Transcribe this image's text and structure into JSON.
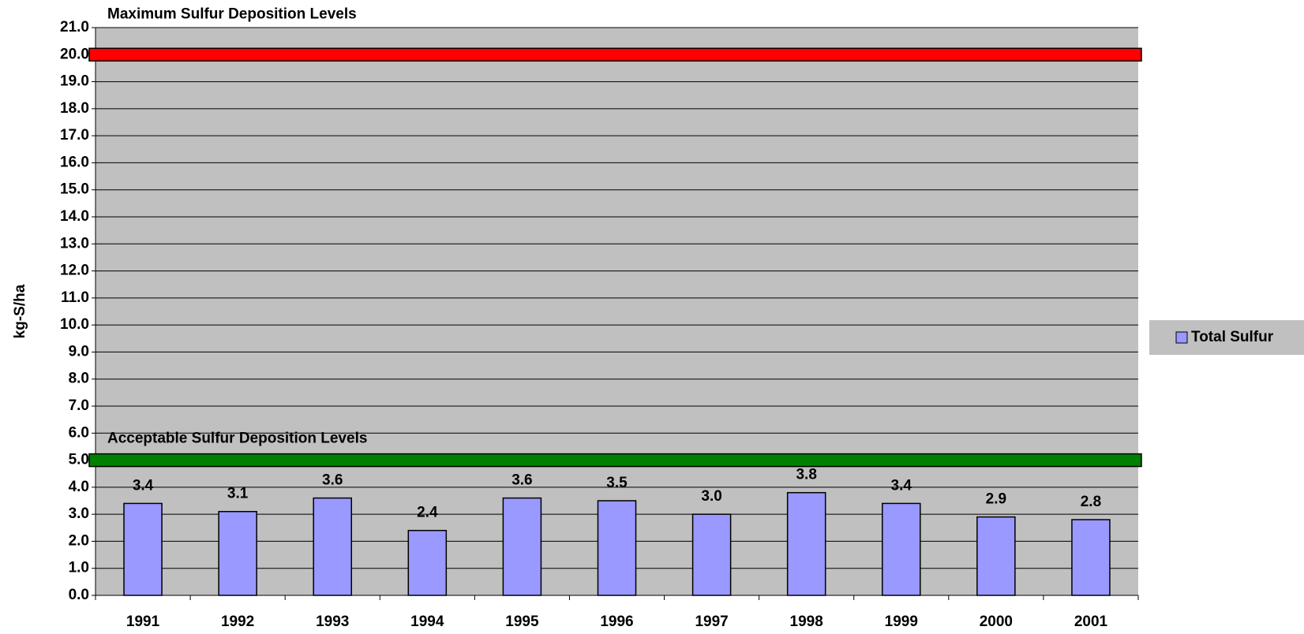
{
  "chart_data": {
    "type": "bar",
    "y_axis_label": "kg-S/ha",
    "categories": [
      "1991",
      "1992",
      "1993",
      "1994",
      "1995",
      "1996",
      "1997",
      "1998",
      "1999",
      "2000",
      "2001"
    ],
    "series": [
      {
        "name": "Total Sulfur",
        "color": "#9999ff",
        "values": [
          3.4,
          3.1,
          3.6,
          2.4,
          3.6,
          3.5,
          3.0,
          3.8,
          3.4,
          2.9,
          2.8
        ],
        "value_labels": [
          "3.4",
          "3.1",
          "3.6",
          "2.4",
          "3.6",
          "3.5",
          "3.0",
          "3.8",
          "3.4",
          "2.9",
          "2.8"
        ]
      }
    ],
    "reference_lines": [
      {
        "label": "Maximum Sulfur Deposition Levels",
        "value": 20,
        "color": "#ff0000"
      },
      {
        "label": "Acceptable Sulfur Deposition Levels",
        "value": 5,
        "color": "#008000"
      }
    ],
    "ylim": [
      0,
      21
    ],
    "yticks": [
      {
        "value": 0,
        "label": "0.0"
      },
      {
        "value": 1,
        "label": "1.0"
      },
      {
        "value": 2,
        "label": "2.0"
      },
      {
        "value": 3,
        "label": "3.0"
      },
      {
        "value": 4,
        "label": "4.0"
      },
      {
        "value": 5,
        "label": "5.0"
      },
      {
        "value": 6,
        "label": "6.0"
      },
      {
        "value": 7,
        "label": "7.0"
      },
      {
        "value": 8,
        "label": "8.0"
      },
      {
        "value": 9,
        "label": "9.0"
      },
      {
        "value": 10,
        "label": "10.0"
      },
      {
        "value": 11,
        "label": "11.0"
      },
      {
        "value": 12,
        "label": "12.0"
      },
      {
        "value": 13,
        "label": "13.0"
      },
      {
        "value": 14,
        "label": "14.0"
      },
      {
        "value": 15,
        "label": "15.0"
      },
      {
        "value": 16,
        "label": "16.0"
      },
      {
        "value": 17,
        "label": "17.0"
      },
      {
        "value": 18,
        "label": "18.0"
      },
      {
        "value": 19,
        "label": "19.0"
      },
      {
        "value": 20,
        "label": "20.0"
      },
      {
        "value": 21,
        "label": "21.0"
      }
    ],
    "grid": true,
    "plot_background": "#c0c0c0",
    "legend": "right"
  }
}
